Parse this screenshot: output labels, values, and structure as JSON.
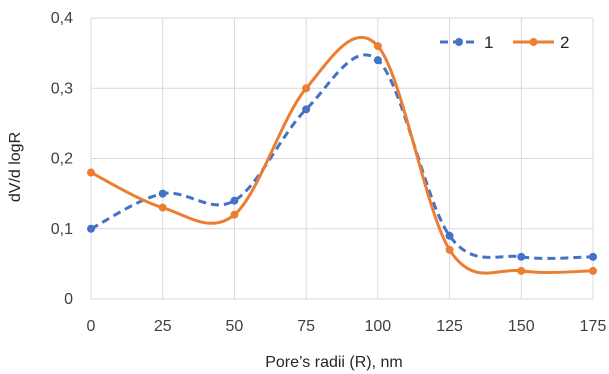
{
  "chart_data": {
    "type": "line",
    "title": "",
    "xlabel": "Pore’s radii (R), nm",
    "ylabel": "dV/d logR",
    "xlim": [
      0,
      175
    ],
    "ylim": [
      0,
      0.4
    ],
    "x_ticks": [
      0,
      25,
      50,
      75,
      100,
      125,
      150,
      175
    ],
    "x_tick_labels": [
      "0",
      "25",
      "50",
      "75",
      "100",
      "125",
      "150",
      "175"
    ],
    "y_ticks": [
      0,
      0.1,
      0.2,
      0.3,
      0.4
    ],
    "y_tick_labels": [
      "0",
      "0,1",
      "0,2",
      "0,3",
      "0,4"
    ],
    "grid": true,
    "smooth": true,
    "legend": "top-right",
    "series": [
      {
        "name": "1",
        "color": "#4472C4",
        "dashed": true,
        "x": [
          0,
          25,
          50,
          75,
          100,
          125,
          150,
          175
        ],
        "y": [
          0.1,
          0.15,
          0.14,
          0.27,
          0.34,
          0.09,
          0.06,
          0.06
        ]
      },
      {
        "name": "2",
        "color": "#ED7D31",
        "dashed": false,
        "x": [
          0,
          25,
          50,
          75,
          100,
          125,
          150,
          175
        ],
        "y": [
          0.18,
          0.13,
          0.12,
          0.3,
          0.36,
          0.07,
          0.04,
          0.04
        ]
      }
    ]
  }
}
